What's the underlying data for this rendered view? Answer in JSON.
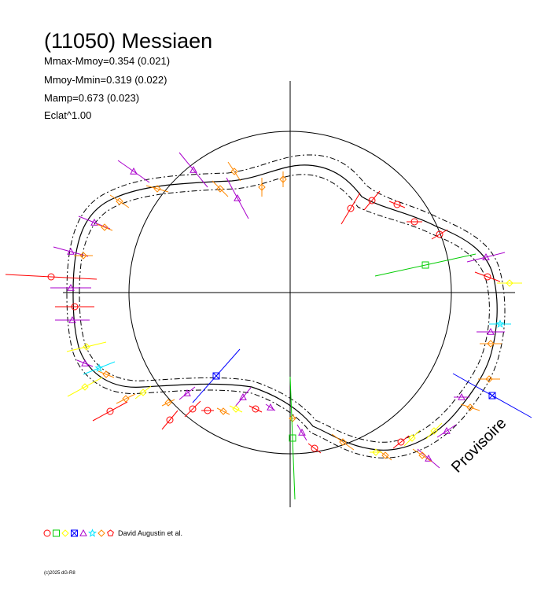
{
  "title": "(11050) Messiaen",
  "stats": [
    "Mmax-Mmoy=0.354 (0.021)",
    "Mmoy-Mmin=0.319 (0.022)",
    "Mamp=0.673 (0.023)",
    "Eclat^1.00"
  ],
  "watermark": "Provisoire",
  "credit": "David Augustin et al.",
  "copyright": "(c)2025 dG-R8",
  "colors": {
    "red": "#ff0000",
    "green": "#00cc00",
    "yellow": "#ffff00",
    "blue": "#0000ff",
    "purple": "#aa00cc",
    "cyan": "#00e5ff",
    "orange": "#ff8800",
    "axis": "#000000"
  },
  "legend_markers": [
    {
      "shape": "circle-icon",
      "color": "#ff0000"
    },
    {
      "shape": "square-icon",
      "color": "#00cc00"
    },
    {
      "shape": "diamond-icon",
      "color": "#ffff00"
    },
    {
      "shape": "x-square-icon",
      "color": "#0000ff"
    },
    {
      "shape": "triangle-icon",
      "color": "#aa00cc"
    },
    {
      "shape": "star-icon",
      "color": "#00e5ff"
    },
    {
      "shape": "diamond-icon",
      "color": "#ff8800"
    },
    {
      "shape": "pentagon-icon",
      "color": "#ff0000"
    }
  ]
}
